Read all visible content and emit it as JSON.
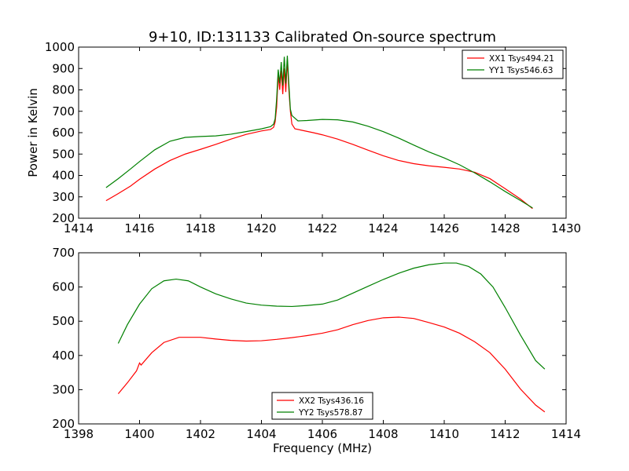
{
  "figure": {
    "title": "9+10, ID:131133 Calibrated On-source spectrum"
  },
  "chart_data": [
    {
      "type": "line",
      "title": "9+10, ID:131133 Calibrated On-source spectrum",
      "xlabel": "",
      "ylabel": "Power in Kelvin",
      "xlim": [
        1414,
        1430
      ],
      "ylim": [
        200,
        1000
      ],
      "xticks": [
        1414,
        1416,
        1418,
        1420,
        1422,
        1424,
        1426,
        1428,
        1430
      ],
      "yticks": [
        200,
        300,
        400,
        500,
        600,
        700,
        800,
        900,
        1000
      ],
      "grid": false,
      "legend_position": "top-right",
      "series": [
        {
          "name": "XX1 Tsys494.21",
          "color": "#ff0000",
          "points": [
            [
              1414.9,
              282
            ],
            [
              1415.3,
              315
            ],
            [
              1415.7,
              350
            ],
            [
              1416.0,
              382
            ],
            [
              1416.5,
              430
            ],
            [
              1417.0,
              470
            ],
            [
              1417.5,
              500
            ],
            [
              1418.0,
              522
            ],
            [
              1418.5,
              545
            ],
            [
              1419.0,
              570
            ],
            [
              1419.5,
              592
            ],
            [
              1420.0,
              608
            ],
            [
              1420.3,
              615
            ],
            [
              1420.4,
              625
            ],
            [
              1420.45,
              650
            ],
            [
              1420.5,
              720
            ],
            [
              1420.55,
              870
            ],
            [
              1420.6,
              800
            ],
            [
              1420.65,
              890
            ],
            [
              1420.7,
              780
            ],
            [
              1420.75,
              900
            ],
            [
              1420.8,
              790
            ],
            [
              1420.85,
              940
            ],
            [
              1420.9,
              800
            ],
            [
              1420.95,
              700
            ],
            [
              1421.0,
              640
            ],
            [
              1421.1,
              618
            ],
            [
              1421.3,
              612
            ],
            [
              1421.7,
              600
            ],
            [
              1422.0,
              590
            ],
            [
              1422.5,
              570
            ],
            [
              1423.0,
              545
            ],
            [
              1423.5,
              518
            ],
            [
              1424.0,
              492
            ],
            [
              1424.5,
              470
            ],
            [
              1425.0,
              455
            ],
            [
              1425.5,
              445
            ],
            [
              1426.0,
              438
            ],
            [
              1426.5,
              430
            ],
            [
              1427.0,
              415
            ],
            [
              1427.5,
              385
            ],
            [
              1428.0,
              338
            ],
            [
              1428.5,
              290
            ],
            [
              1428.9,
              245
            ]
          ]
        },
        {
          "name": "YY1 Tsys546.63",
          "color": "#008000",
          "points": [
            [
              1414.9,
              343
            ],
            [
              1415.3,
              385
            ],
            [
              1415.7,
              430
            ],
            [
              1416.0,
              465
            ],
            [
              1416.5,
              520
            ],
            [
              1417.0,
              560
            ],
            [
              1417.5,
              578
            ],
            [
              1418.0,
              582
            ],
            [
              1418.5,
              585
            ],
            [
              1419.0,
              593
            ],
            [
              1419.5,
              605
            ],
            [
              1420.0,
              618
            ],
            [
              1420.3,
              628
            ],
            [
              1420.4,
              640
            ],
            [
              1420.45,
              665
            ],
            [
              1420.5,
              760
            ],
            [
              1420.55,
              895
            ],
            [
              1420.6,
              830
            ],
            [
              1420.65,
              930
            ],
            [
              1420.7,
              820
            ],
            [
              1420.75,
              955
            ],
            [
              1420.8,
              830
            ],
            [
              1420.85,
              960
            ],
            [
              1420.9,
              830
            ],
            [
              1420.95,
              710
            ],
            [
              1421.0,
              680
            ],
            [
              1421.2,
              655
            ],
            [
              1421.5,
              657
            ],
            [
              1422.0,
              662
            ],
            [
              1422.5,
              660
            ],
            [
              1423.0,
              650
            ],
            [
              1423.5,
              630
            ],
            [
              1424.0,
              605
            ],
            [
              1424.5,
              575
            ],
            [
              1425.0,
              542
            ],
            [
              1425.5,
              510
            ],
            [
              1426.0,
              482
            ],
            [
              1426.5,
              450
            ],
            [
              1427.0,
              412
            ],
            [
              1427.5,
              370
            ],
            [
              1428.0,
              325
            ],
            [
              1428.5,
              283
            ],
            [
              1428.9,
              248
            ]
          ]
        }
      ]
    },
    {
      "type": "line",
      "title": "",
      "xlabel": "Frequency (MHz)",
      "ylabel": "",
      "xlim": [
        1398,
        1414
      ],
      "ylim": [
        200,
        700
      ],
      "xticks": [
        1398,
        1400,
        1402,
        1404,
        1406,
        1408,
        1410,
        1412,
        1414
      ],
      "yticks": [
        200,
        300,
        400,
        500,
        600,
        700
      ],
      "grid": false,
      "legend_position": "bottom-center",
      "series": [
        {
          "name": "XX2 Tsys436.16",
          "color": "#ff0000",
          "points": [
            [
              1399.3,
              288
            ],
            [
              1399.6,
              320
            ],
            [
              1399.9,
              355
            ],
            [
              1400.0,
              378
            ],
            [
              1400.05,
              372
            ],
            [
              1400.4,
              408
            ],
            [
              1400.8,
              438
            ],
            [
              1401.3,
              453
            ],
            [
              1402.0,
              453
            ],
            [
              1402.5,
              448
            ],
            [
              1403.0,
              444
            ],
            [
              1403.5,
              442
            ],
            [
              1404.0,
              443
            ],
            [
              1404.5,
              447
            ],
            [
              1405.0,
              452
            ],
            [
              1405.5,
              458
            ],
            [
              1406.0,
              465
            ],
            [
              1406.5,
              475
            ],
            [
              1407.0,
              490
            ],
            [
              1407.5,
              502
            ],
            [
              1408.0,
              510
            ],
            [
              1408.5,
              512
            ],
            [
              1409.0,
              508
            ],
            [
              1409.5,
              496
            ],
            [
              1410.0,
              483
            ],
            [
              1410.5,
              465
            ],
            [
              1411.0,
              440
            ],
            [
              1411.5,
              408
            ],
            [
              1412.0,
              360
            ],
            [
              1412.5,
              302
            ],
            [
              1413.0,
              255
            ],
            [
              1413.3,
              235
            ]
          ]
        },
        {
          "name": "YY2 Tsys578.87",
          "color": "#008000",
          "points": [
            [
              1399.3,
              435
            ],
            [
              1399.6,
              490
            ],
            [
              1400.0,
              550
            ],
            [
              1400.4,
              595
            ],
            [
              1400.8,
              618
            ],
            [
              1401.2,
              623
            ],
            [
              1401.6,
              618
            ],
            [
              1402.0,
              600
            ],
            [
              1402.5,
              580
            ],
            [
              1403.0,
              565
            ],
            [
              1403.5,
              553
            ],
            [
              1404.0,
              547
            ],
            [
              1404.5,
              544
            ],
            [
              1405.0,
              543
            ],
            [
              1405.5,
              546
            ],
            [
              1406.0,
              550
            ],
            [
              1406.5,
              562
            ],
            [
              1407.0,
              582
            ],
            [
              1407.5,
              602
            ],
            [
              1408.0,
              622
            ],
            [
              1408.5,
              640
            ],
            [
              1409.0,
              655
            ],
            [
              1409.5,
              665
            ],
            [
              1410.0,
              670
            ],
            [
              1410.4,
              670
            ],
            [
              1410.8,
              660
            ],
            [
              1411.2,
              638
            ],
            [
              1411.6,
              600
            ],
            [
              1412.0,
              540
            ],
            [
              1412.5,
              460
            ],
            [
              1413.0,
              385
            ],
            [
              1413.3,
              360
            ]
          ]
        }
      ]
    }
  ]
}
